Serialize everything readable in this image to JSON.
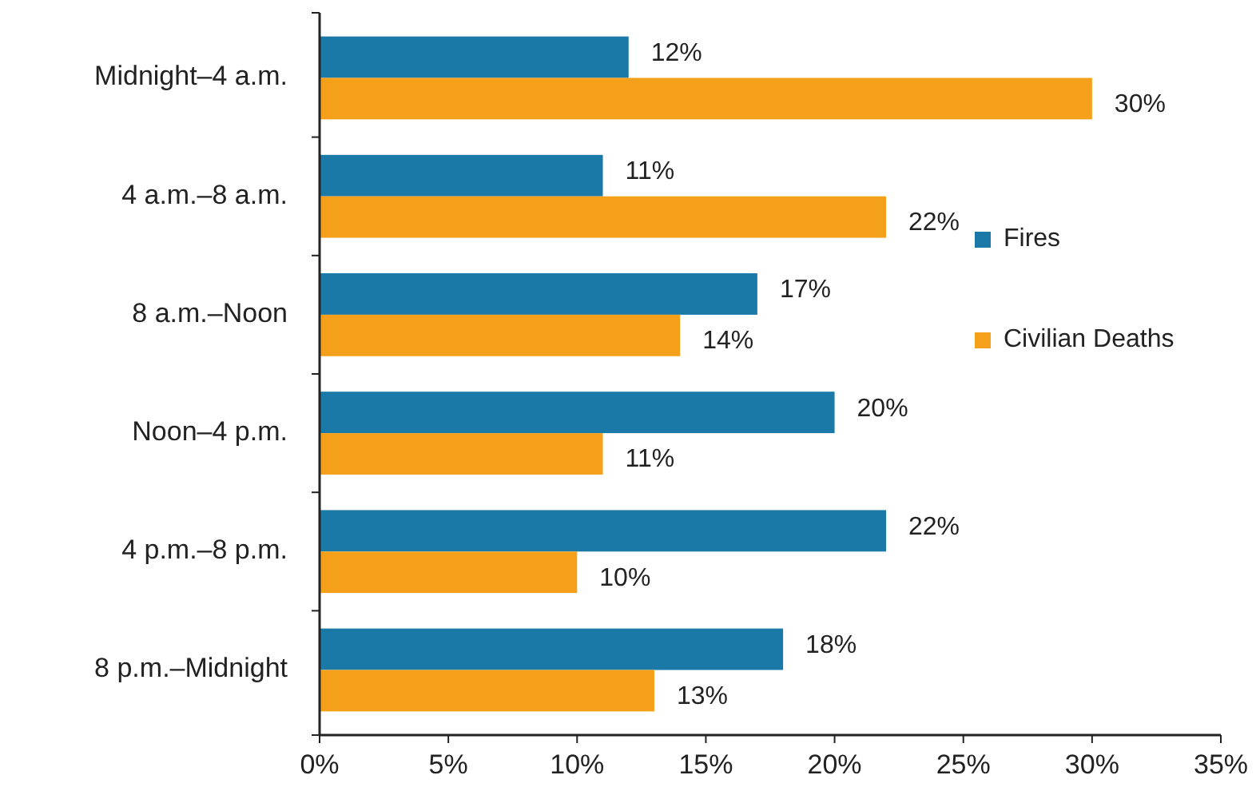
{
  "chart_data": {
    "type": "bar",
    "orientation": "horizontal",
    "categories": [
      "Midnight–4 a.m.",
      "4 a.m.–8 a.m.",
      "8 a.m.–Noon",
      "Noon–4 p.m.",
      "4 p.m.–8 p.m.",
      "8 p.m.–Midnight"
    ],
    "series": [
      {
        "name": "Fires",
        "color": "#1b79a8",
        "values": [
          12,
          11,
          17,
          20,
          22,
          18
        ],
        "value_labels": [
          "12%",
          "11%",
          "17%",
          "20%",
          "22%",
          "18%"
        ]
      },
      {
        "name": "Civilian Deaths",
        "color": "#f5a01a",
        "values": [
          30,
          22,
          14,
          11,
          10,
          13
        ],
        "value_labels": [
          "30%",
          "22%",
          "14%",
          "11%",
          "10%",
          "13%"
        ]
      }
    ],
    "xlim": [
      0,
      35
    ],
    "xticks": [
      {
        "value": 0,
        "label": "0%"
      },
      {
        "value": 5,
        "label": "5%"
      },
      {
        "value": 10,
        "label": "10%"
      },
      {
        "value": 15,
        "label": "15%"
      },
      {
        "value": 20,
        "label": "20%"
      },
      {
        "value": 25,
        "label": "25%"
      },
      {
        "value": 30,
        "label": "30%"
      },
      {
        "value": 35,
        "label": "35%"
      }
    ],
    "grid": false,
    "legend": "right"
  }
}
